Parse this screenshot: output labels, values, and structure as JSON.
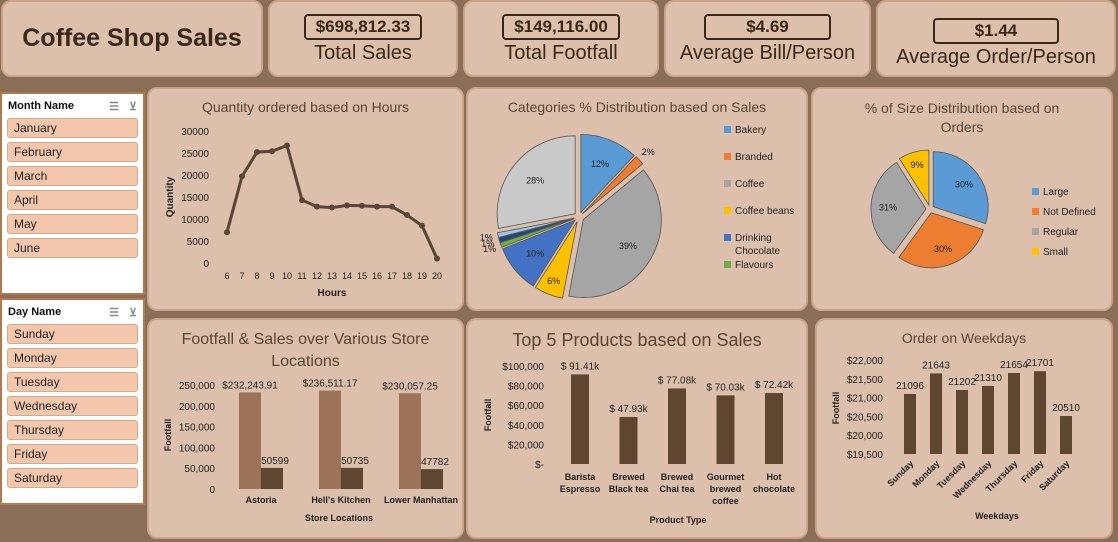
{
  "header": {
    "title": "Coffee Shop Sales",
    "kpis": [
      {
        "value": "$698,812.33",
        "label": "Total Sales"
      },
      {
        "value": "$149,116.00",
        "label": "Total Footfall"
      },
      {
        "value": "$4.69",
        "label": "Average Bill/Person"
      },
      {
        "value": "$1.44",
        "label": "Average Order/Person"
      }
    ]
  },
  "slicers": {
    "month": {
      "title": "Month Name",
      "items": [
        "January",
        "February",
        "March",
        "April",
        "May",
        "June"
      ]
    },
    "day": {
      "title": "Day Name",
      "items": [
        "Sunday",
        "Monday",
        "Tuesday",
        "Wednesday",
        "Thursday",
        "Friday",
        "Saturday"
      ]
    }
  },
  "colors": {
    "background": "#8b6e57",
    "card": "#dcc0ab",
    "line": "#5b4636",
    "bar_dark": "#5f4630",
    "bar_light": "#9c7258"
  },
  "chart_data": [
    {
      "id": "hours",
      "type": "line",
      "title": "Quantity ordered based on Hours",
      "xlabel": "Hours",
      "ylabel": "Quantity",
      "x": [
        6,
        7,
        8,
        9,
        10,
        11,
        12,
        13,
        14,
        15,
        16,
        17,
        18,
        19,
        20
      ],
      "values": [
        7000,
        19700,
        25200,
        25400,
        26700,
        14300,
        12800,
        12600,
        13100,
        13000,
        12800,
        12800,
        10900,
        8500,
        1000
      ],
      "ylim": [
        0,
        30000
      ],
      "yticks": [
        "0",
        "5000",
        "10000",
        "15000",
        "20000",
        "25000",
        "30000"
      ]
    },
    {
      "id": "categories",
      "type": "pie",
      "title": "Categories % Distribution based on Sales",
      "slices": [
        {
          "label": "Bakery",
          "value": 12,
          "display": "12%",
          "color": "#5b9bd5"
        },
        {
          "label": "Branded",
          "value": 2,
          "display": "2%",
          "color": "#ed7d31"
        },
        {
          "label": "Coffee",
          "value": 39,
          "display": "39%",
          "color": "#a5a5a5"
        },
        {
          "label": "Coffee beans",
          "value": 6,
          "display": "6%",
          "color": "#ffc000"
        },
        {
          "label": "Drinking Chocolate",
          "value": 10,
          "display": "10%",
          "color": "#4472c4"
        },
        {
          "label": "Flavours",
          "value": 1,
          "display": "1%",
          "color": "#70ad47"
        },
        {
          "label": "",
          "value": 1,
          "display": "1%",
          "color": "#264478"
        },
        {
          "label": "",
          "value": 1,
          "display": "1%",
          "color": "#9dc3e6"
        },
        {
          "label": "",
          "value": 28,
          "display": "28%",
          "color": "#c9c9c9"
        }
      ],
      "legend": [
        "Bakery",
        "Branded",
        "Coffee",
        "Coffee beans",
        "Drinking Chocolate",
        "Flavours"
      ]
    },
    {
      "id": "sizes",
      "type": "pie",
      "title": "% of Size Distribution based on Orders",
      "slices": [
        {
          "label": "Large",
          "value": 30,
          "display": "30%",
          "color": "#5b9bd5"
        },
        {
          "label": "Not Defined",
          "value": 30,
          "display": "30%",
          "color": "#ed7d31"
        },
        {
          "label": "Regular",
          "value": 31,
          "display": "31%",
          "color": "#a5a5a5"
        },
        {
          "label": "Small",
          "value": 9,
          "display": "9%",
          "color": "#ffc000"
        }
      ]
    },
    {
      "id": "stores",
      "type": "bar",
      "title": "Footfall & Sales over Various Store Locations",
      "xlabel": "Store Locations",
      "ylabel": "Footfall",
      "categories": [
        "Astoria",
        "Hell's Kitchen",
        "Lower Manhattan"
      ],
      "series": [
        {
          "values": [
            232243.91,
            236511.17,
            230057.25
          ],
          "labels": [
            "$232,243.91",
            "$236,511.17",
            "$230,057.25"
          ],
          "color": "#9c7258"
        },
        {
          "values": [
            50599,
            50735,
            47782
          ],
          "labels": [
            "50599",
            "50735",
            "47782"
          ],
          "color": "#5f4630"
        }
      ],
      "ylim": [
        0,
        250000
      ],
      "yticks": [
        "0",
        "50,000",
        "100,000",
        "150,000",
        "200,000",
        "250,000"
      ]
    },
    {
      "id": "products",
      "type": "bar",
      "title": "Top 5 Products based on Sales",
      "xlabel": "Product Type",
      "ylabel": "Footfall",
      "categories": [
        [
          "Barista",
          "Espresso"
        ],
        [
          "Brewed",
          "Black tea"
        ],
        [
          "Brewed",
          "Chai tea"
        ],
        [
          "Gourmet",
          "brewed",
          "coffee"
        ],
        [
          "Hot",
          "chocolate"
        ]
      ],
      "values": [
        91410,
        47930,
        77080,
        70030,
        72420
      ],
      "labels": [
        "$ 91.41k",
        "$ 47.93k",
        "$ 77.08k",
        "$ 70.03k",
        "$ 72.42k"
      ],
      "ylim": [
        0,
        100000
      ],
      "yticks": [
        "$-",
        "$20,000",
        "$40,000",
        "$60,000",
        "$80,000",
        "$100,000"
      ]
    },
    {
      "id": "weekdays",
      "type": "bar",
      "title": "Order on Weekdays",
      "xlabel": "Weekdays",
      "ylabel": "Footfall",
      "categories": [
        "Sunday",
        "Monday",
        "Tuesday",
        "Wednesday",
        "Thursday",
        "Friday",
        "Saturday"
      ],
      "values": [
        21096,
        21643,
        21202,
        21310,
        21654,
        21701,
        20510
      ],
      "labels": [
        "21096",
        "21643",
        "21202",
        "21310",
        "21654",
        "21701",
        "20510"
      ],
      "ylim": [
        19500,
        22000
      ],
      "yticks": [
        "$19,500",
        "$20,000",
        "$20,500",
        "$21,000",
        "$21,500",
        "$22,000"
      ]
    }
  ]
}
